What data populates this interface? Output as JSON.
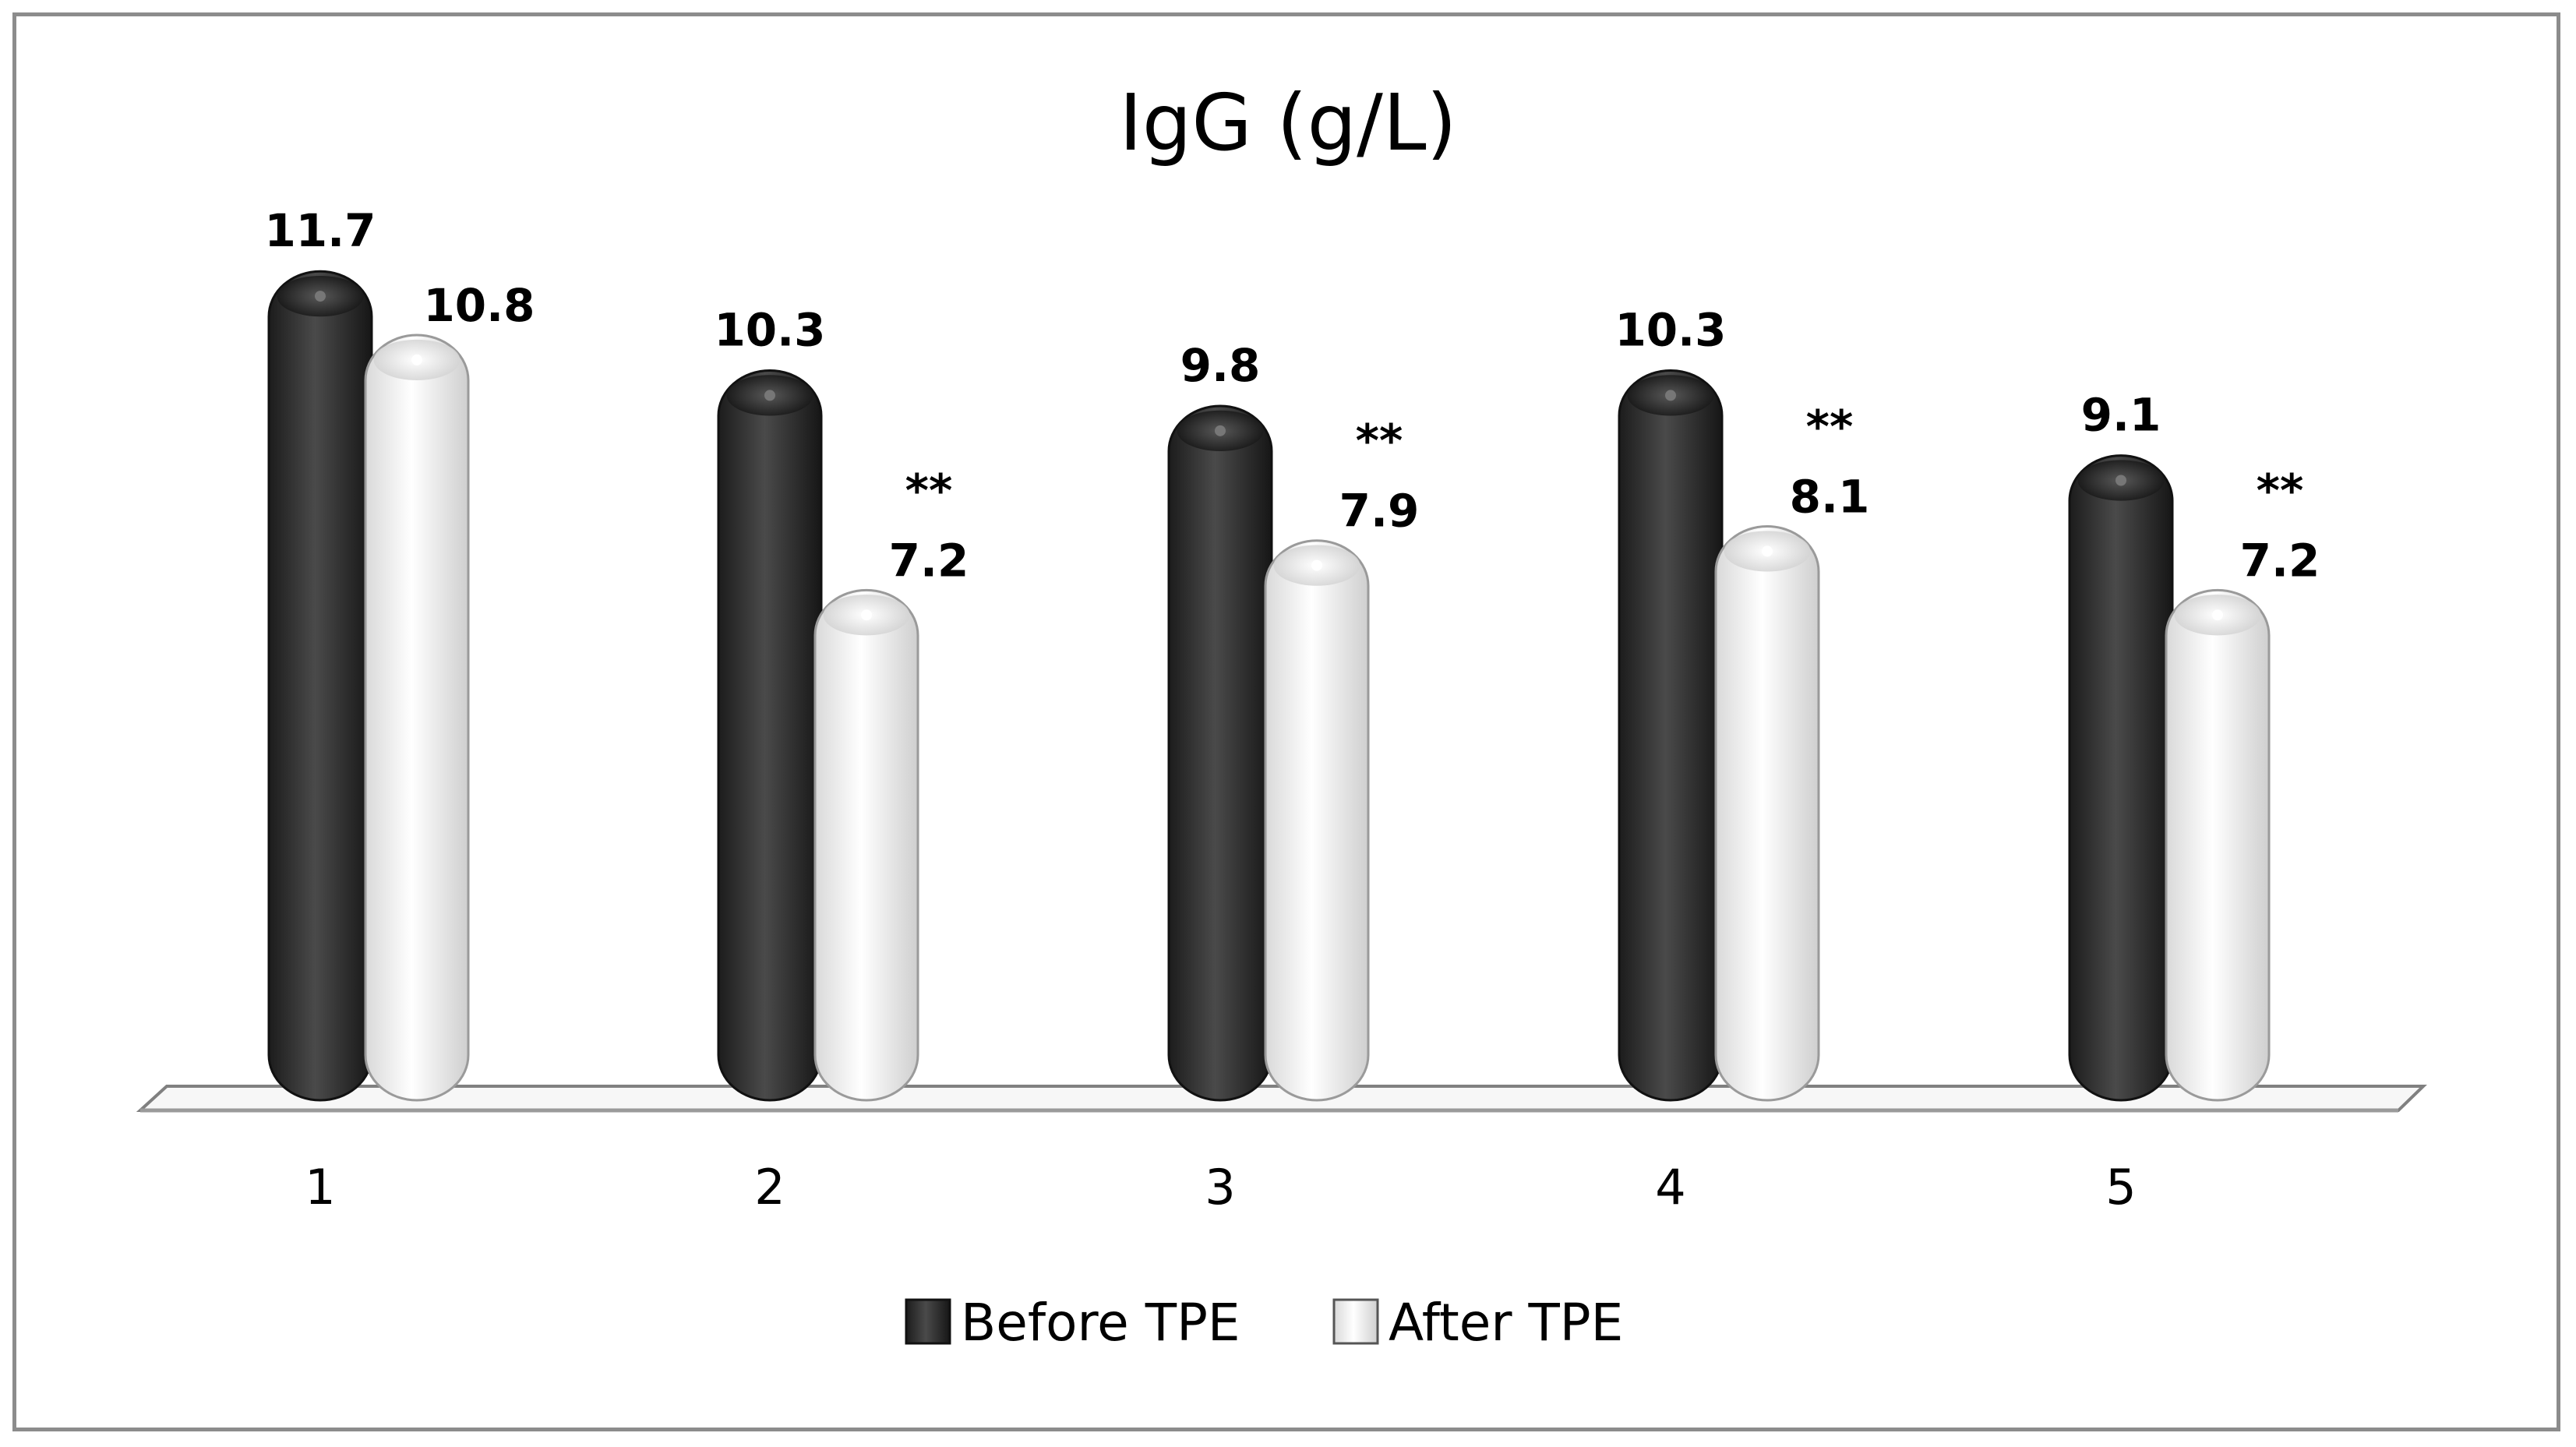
{
  "chart_data": {
    "type": "bar",
    "title": "IgG (g/L)",
    "xlabel": "",
    "ylabel": "",
    "categories": [
      "1",
      "2",
      "3",
      "4",
      "5"
    ],
    "series": [
      {
        "name": "Before TPE",
        "values": [
          11.7,
          10.3,
          9.8,
          10.3,
          9.1
        ],
        "labels": [
          "11.7",
          "10.3",
          "9.8",
          "10.3",
          "9.1"
        ],
        "color": "#2e2e2e"
      },
      {
        "name": "After TPE",
        "values": [
          10.8,
          7.2,
          7.9,
          8.1,
          7.2
        ],
        "labels": [
          "10.8",
          "7.2",
          "7.9",
          "8.1",
          "7.2"
        ],
        "color": "#f2f2f2"
      }
    ],
    "annotations": [
      "",
      "**",
      "**",
      "**",
      "**"
    ],
    "ylim": [
      0,
      13
    ],
    "grid": false,
    "legend": "bottom"
  }
}
